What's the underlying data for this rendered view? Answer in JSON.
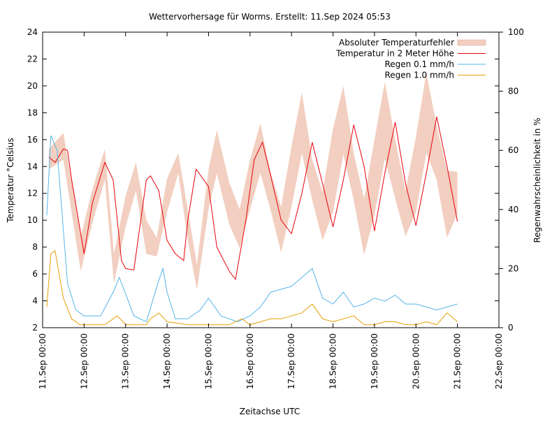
{
  "chart_data": {
    "type": "line",
    "title": "Wettervorhersage für Worms. Erstellt: 11.Sep 2024 05:53",
    "xlabel": "Zeitachse UTC",
    "ylabel": "Temperatur °Celsius",
    "y2label": "Regenwahrscheinlichkeit in %",
    "xlim_days": [
      0,
      11
    ],
    "ylim": [
      2,
      24
    ],
    "y2lim": [
      0,
      100
    ],
    "yticks": [
      "2",
      "4",
      "6",
      "8",
      "10",
      "12",
      "14",
      "16",
      "18",
      "20",
      "22",
      "24"
    ],
    "y2ticks": [
      "0",
      "20",
      "40",
      "60",
      "80",
      "100"
    ],
    "xticks": [
      "11.Sep 00:00",
      "12.Sep 00:00",
      "13.Sep 00:00",
      "14.Sep 00:00",
      "15.Sep 00:00",
      "16.Sep 00:00",
      "17.Sep 00:00",
      "18.Sep 00:00",
      "19.Sep 00:00",
      "20.Sep 00:00",
      "21.Sep 00:00",
      "22.Sep 00:00"
    ],
    "grid": false,
    "legend_position": "top-right",
    "series": [
      {
        "name": "Absoluter Temperaturfehler",
        "kind": "band",
        "color": "#f2cfc0",
        "x": [
          0.15,
          0.5,
          0.92,
          1.2,
          1.5,
          1.72,
          2.0,
          2.25,
          2.5,
          2.75,
          3.0,
          3.27,
          3.5,
          3.72,
          4.0,
          4.2,
          4.5,
          4.75,
          5.0,
          5.25,
          5.5,
          5.75,
          6.0,
          6.25,
          6.5,
          6.75,
          7.0,
          7.25,
          7.5,
          7.75,
          8.0,
          8.25,
          8.5,
          8.75,
          9.0,
          9.25,
          9.5,
          9.75,
          10.0
        ],
        "lower": [
          13.8,
          14.5,
          6.2,
          9.8,
          13.0,
          5.3,
          9.5,
          12.2,
          7.5,
          7.3,
          10.6,
          13.5,
          8.5,
          4.8,
          10.8,
          13.5,
          9.7,
          7.9,
          10.8,
          13.5,
          10.7,
          7.6,
          11.0,
          15.0,
          11.5,
          8.5,
          10.6,
          14.9,
          11.5,
          7.4,
          10.4,
          14.6,
          11.6,
          8.8,
          10.6,
          15.0,
          13.0,
          8.7,
          10.5
        ],
        "upper": [
          15.3,
          16.5,
          8.8,
          12.3,
          15.3,
          7.5,
          11.8,
          14.3,
          10.0,
          8.7,
          13.1,
          15.0,
          10.8,
          6.7,
          13.8,
          16.7,
          12.8,
          10.8,
          14.5,
          17.2,
          13.5,
          11.0,
          15.5,
          19.5,
          14.5,
          12.1,
          16.8,
          20.0,
          15.0,
          11.6,
          16.0,
          20.3,
          16.0,
          12.2,
          16.2,
          21.0,
          17.0,
          13.7,
          13.6
        ]
      },
      {
        "name": "Temperatur in 2 Meter Höhe",
        "kind": "line",
        "color": "#e8000b",
        "x": [
          0.15,
          0.3,
          0.5,
          0.6,
          0.7,
          1.0,
          1.2,
          1.5,
          1.7,
          1.9,
          2.0,
          2.2,
          2.5,
          2.6,
          2.8,
          3.0,
          3.2,
          3.4,
          3.5,
          3.7,
          4.0,
          4.2,
          4.5,
          4.65,
          4.9,
          5.1,
          5.3,
          5.5,
          5.75,
          6.0,
          6.25,
          6.5,
          6.75,
          7.0,
          7.25,
          7.5,
          7.75,
          8.0,
          8.25,
          8.5,
          8.75,
          9.0,
          9.25,
          9.5,
          9.75,
          10.0
        ],
        "y": [
          14.7,
          14.3,
          15.3,
          15.2,
          13.0,
          7.5,
          11.3,
          14.3,
          13.0,
          7.0,
          6.4,
          6.3,
          13.0,
          13.3,
          12.2,
          8.5,
          7.5,
          7.0,
          10.0,
          13.8,
          12.5,
          8.0,
          6.2,
          5.6,
          10.0,
          14.5,
          15.8,
          13.3,
          10.0,
          9.0,
          12.0,
          15.8,
          12.7,
          9.5,
          13.0,
          17.1,
          14.0,
          9.2,
          13.5,
          17.3,
          12.7,
          9.6,
          13.5,
          17.7,
          14.0,
          9.9
        ]
      },
      {
        "name": "Regen 0.1 mm/h",
        "kind": "line",
        "axis": "y2",
        "color": "#56b4e9",
        "x": [
          0.1,
          0.2,
          0.35,
          0.6,
          0.8,
          1.0,
          1.4,
          1.7,
          1.85,
          2.2,
          2.5,
          2.8,
          2.9,
          3.0,
          3.2,
          3.5,
          3.8,
          4.0,
          4.3,
          4.7,
          5.0,
          5.25,
          5.5,
          5.75,
          6.0,
          6.25,
          6.5,
          6.75,
          7.0,
          7.25,
          7.5,
          7.75,
          8.0,
          8.25,
          8.5,
          8.75,
          9.0,
          9.25,
          9.5,
          9.75,
          10.0
        ],
        "y": [
          38,
          65,
          60,
          15,
          6,
          4,
          4,
          12,
          17,
          4,
          2,
          16,
          20,
          12,
          3,
          3,
          6,
          10,
          4,
          2,
          4,
          7,
          12,
          13,
          14,
          17,
          20,
          10,
          8,
          12,
          7,
          8,
          10,
          9,
          11,
          8,
          8,
          7,
          6,
          7,
          8
        ]
      },
      {
        "name": "Regen 1.0 mm/h",
        "kind": "line",
        "axis": "y2",
        "color": "#e69f00",
        "x": [
          0.1,
          0.2,
          0.3,
          0.5,
          0.7,
          0.9,
          1.0,
          1.5,
          1.6,
          1.8,
          2.0,
          2.5,
          2.6,
          2.8,
          3.0,
          3.5,
          4.0,
          4.5,
          4.8,
          5.0,
          5.25,
          5.5,
          5.75,
          6.0,
          6.25,
          6.5,
          6.75,
          7.0,
          7.25,
          7.5,
          7.75,
          8.0,
          8.25,
          8.5,
          8.75,
          9.0,
          9.25,
          9.5,
          9.75,
          10.0
        ],
        "y": [
          7,
          25,
          26,
          10,
          3,
          1,
          1,
          1,
          2,
          4,
          1,
          1,
          3,
          5,
          2,
          1,
          1,
          1,
          3,
          1,
          2,
          3,
          3,
          4,
          5,
          8,
          3,
          2,
          3,
          4,
          1,
          1,
          2,
          2,
          1,
          1,
          2,
          1,
          5,
          2
        ]
      }
    ]
  }
}
